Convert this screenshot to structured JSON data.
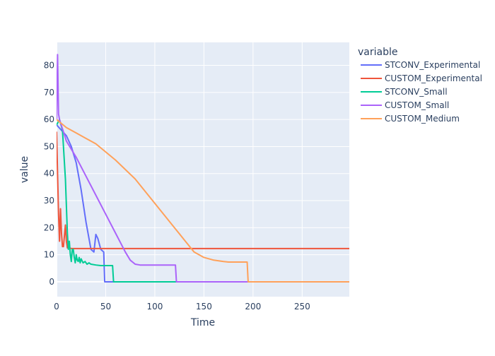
{
  "colors": {
    "plot_bg": "#E5ECF6",
    "grid": "#ffffff",
    "text": "#2a3f5f"
  },
  "legend": {
    "title": "variable",
    "placement": "right"
  },
  "chart_data": {
    "type": "line",
    "xlabel": "Time",
    "ylabel": "value",
    "xlim": [
      0,
      298
    ],
    "ylim": [
      -5.5,
      88.5
    ],
    "grid": true,
    "x_ticks": [
      0,
      50,
      100,
      150,
      200,
      250
    ],
    "x_tick_labels": [
      "0",
      "50",
      "100",
      "150",
      "200",
      "250"
    ],
    "y_ticks": [
      0,
      10,
      20,
      30,
      40,
      50,
      60,
      70,
      80
    ],
    "y_tick_labels": [
      "0",
      "10",
      "20",
      "30",
      "40",
      "50",
      "60",
      "70",
      "80"
    ],
    "series": [
      {
        "name": "STCONV_Experimental",
        "color": "#636EFA",
        "x": [
          0,
          5,
          10,
          15,
          20,
          25,
          30,
          35,
          38,
          40,
          42,
          45,
          48,
          49,
          298
        ],
        "y": [
          58,
          56,
          54,
          50,
          44,
          34,
          22,
          12,
          11,
          17.5,
          16,
          12,
          11,
          0,
          0
        ]
      },
      {
        "name": "CUSTOM_Experimental",
        "color": "#EF553B",
        "x": [
          0,
          1,
          2,
          3,
          4,
          5,
          6,
          7,
          8,
          9,
          10,
          11,
          12,
          13,
          15,
          20,
          298
        ],
        "y": [
          55.5,
          40,
          25,
          15,
          27,
          18,
          13,
          13,
          17,
          21,
          15,
          12.5,
          12.5,
          12.5,
          12.3,
          12.3,
          12.3
        ],
        "y_note": ""
      },
      {
        "name": "STCONV_Small",
        "color": "#00CC96",
        "x": [
          0,
          3,
          6,
          9,
          11,
          12,
          13,
          14,
          15,
          16,
          17,
          18,
          19,
          20,
          21,
          22,
          23,
          24,
          25,
          27,
          29,
          31,
          33,
          35,
          40,
          45,
          50,
          55,
          57,
          58,
          120,
          121,
          298
        ],
        "y": [
          58,
          60,
          56,
          38,
          18,
          12,
          15,
          10,
          7.5,
          12,
          12,
          9,
          7,
          10,
          8,
          7.5,
          9,
          7,
          8.5,
          7,
          7.5,
          6.5,
          7,
          6.5,
          6.2,
          6,
          6,
          6,
          6,
          0,
          0,
          0,
          0
        ]
      },
      {
        "name": "CUSTOM_Small",
        "color": "#AB63FA",
        "x": [
          0,
          1,
          2,
          3,
          10,
          20,
          30,
          40,
          50,
          60,
          70,
          75,
          80,
          85,
          90,
          100,
          110,
          120,
          121,
          122,
          298
        ],
        "y": [
          60,
          84,
          62,
          60,
          52,
          46,
          39,
          32,
          25,
          18,
          11,
          8,
          6.5,
          6.2,
          6.2,
          6.2,
          6.2,
          6.2,
          6.2,
          0,
          0
        ]
      },
      {
        "name": "CUSTOM_Medium",
        "color": "#FFA15A",
        "x": [
          0,
          5,
          10,
          20,
          30,
          40,
          50,
          60,
          70,
          80,
          90,
          100,
          110,
          120,
          130,
          140,
          150,
          160,
          170,
          175,
          180,
          185,
          190,
          194,
          195,
          298
        ],
        "y": [
          60,
          58.5,
          57,
          55,
          53,
          51,
          48,
          45,
          41.5,
          38,
          33.5,
          29,
          24.5,
          20,
          15.5,
          11,
          9,
          8,
          7.5,
          7.3,
          7.3,
          7.3,
          7.3,
          7.3,
          0,
          0
        ]
      }
    ]
  }
}
